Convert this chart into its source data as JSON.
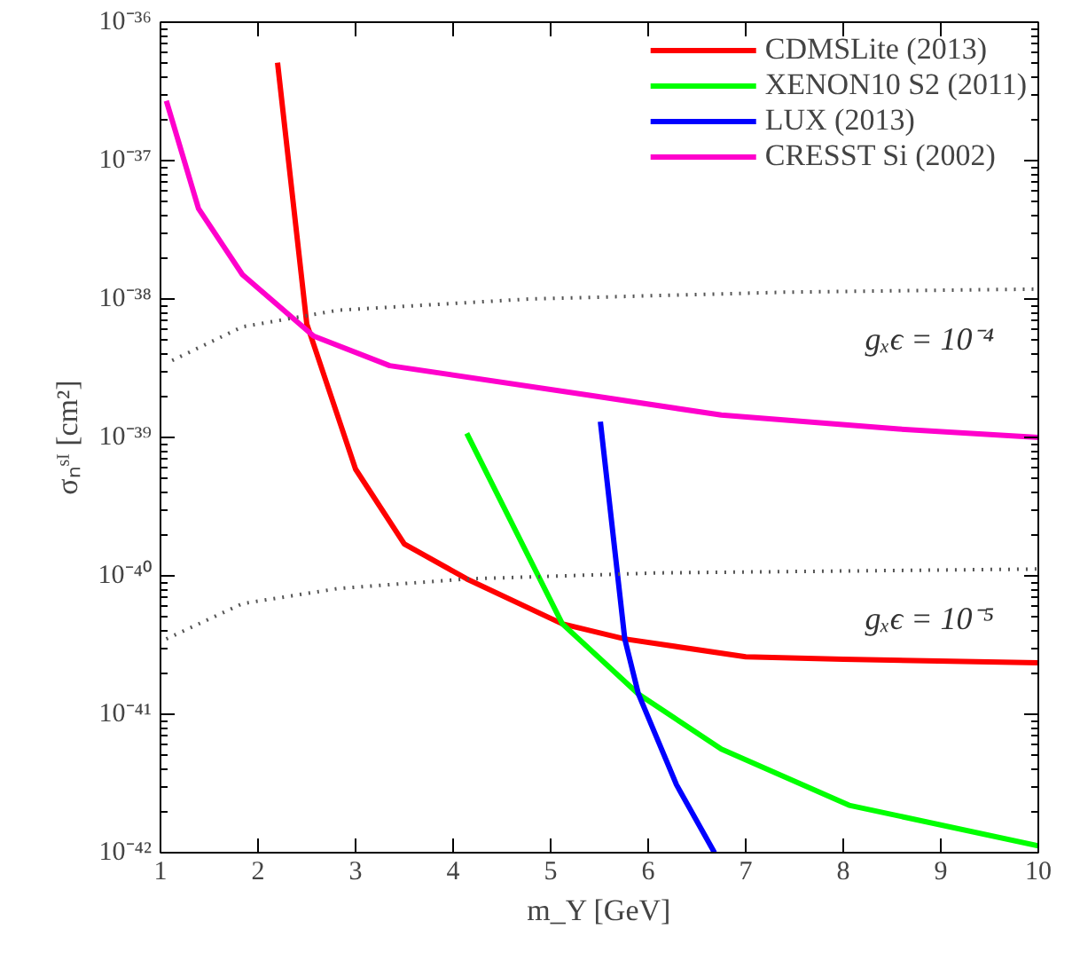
{
  "chart_data": {
    "type": "line",
    "xlabel": "m_Y [GeV]",
    "ylabel": "σₙˢᴵ [cm²]",
    "log": "y",
    "xlim": [
      1,
      10
    ],
    "xticks": [
      1,
      2,
      3,
      4,
      5,
      6,
      7,
      8,
      9,
      10
    ],
    "ylim": [
      1e-42,
      1e-36
    ],
    "yticks": [
      {
        "value": 1e-42,
        "label": "10⁻⁴²"
      },
      {
        "value": 1e-41,
        "label": "10⁻⁴¹"
      },
      {
        "value": 1e-40,
        "label": "10⁻⁴⁰"
      },
      {
        "value": 1e-39,
        "label": "10⁻³⁹"
      },
      {
        "value": 1e-38,
        "label": "10⁻³⁸"
      },
      {
        "value": 1e-37,
        "label": "10⁻³⁷"
      },
      {
        "value": 1e-36,
        "label": "10⁻³⁶"
      }
    ],
    "grid": false,
    "legend": "top right",
    "line_style": "solid",
    "marker": "none",
    "series": [
      {
        "name": "CDMSLite (2013)",
        "color": "#ff0000",
        "x": [
          2.2,
          2.5,
          3.0,
          3.5,
          4.14,
          5.12,
          5.76,
          7.0,
          8.0,
          10.0
        ],
        "values": [
          5.1e-37,
          6.6e-39,
          5.9e-40,
          1.7e-40,
          9.5e-41,
          4.5e-41,
          3.5e-41,
          2.6e-41,
          2.5e-41,
          2.35e-41
        ]
      },
      {
        "name": "XENON10 S2 (2011)",
        "color": "#00ff00",
        "x": [
          4.14,
          5.12,
          5.9,
          6.75,
          8.06,
          10.0
        ],
        "values": [
          1.07e-39,
          4.5e-41,
          1.4e-41,
          5.6e-42,
          2.2e-42,
          1.12e-42
        ]
      },
      {
        "name": "LUX (2013)",
        "color": "#0000ff",
        "x": [
          5.51,
          5.76,
          5.9,
          6.29,
          6.68
        ],
        "values": [
          1.3e-39,
          3.5e-41,
          1.4e-41,
          3.1e-42,
          1e-42
        ]
      },
      {
        "name": "CRESST Si (2002)",
        "color": "#ff00cc",
        "x": [
          1.06,
          1.39,
          1.84,
          2.57,
          3.35,
          5.43,
          6.75,
          8.57,
          10.0
        ],
        "values": [
          2.7e-37,
          4.5e-38,
          1.5e-38,
          5.4e-39,
          3.3e-39,
          2e-39,
          1.45e-39,
          1.15e-39,
          1e-39
        ]
      },
      {
        "color": "#555555",
        "line_style": "dotted",
        "x": [
          1.12,
          1.84,
          2.82,
          4.78,
          7.4,
          10.0
        ],
        "values": [
          3.6e-39,
          6.3e-39,
          8.3e-39,
          1e-38,
          1.12e-38,
          1.18e-38
        ]
      },
      {
        "color": "#555555",
        "line_style": "dotted",
        "x": [
          1.06,
          1.84,
          2.82,
          4.14,
          6.1,
          10.0
        ],
        "values": [
          3.5e-41,
          6.3e-41,
          8.1e-41,
          9.5e-41,
          1.05e-40,
          1.12e-40
        ]
      }
    ],
    "annotations": [
      "gₓϵ = 10⁻⁴",
      "gₓϵ = 10⁻⁵"
    ]
  }
}
